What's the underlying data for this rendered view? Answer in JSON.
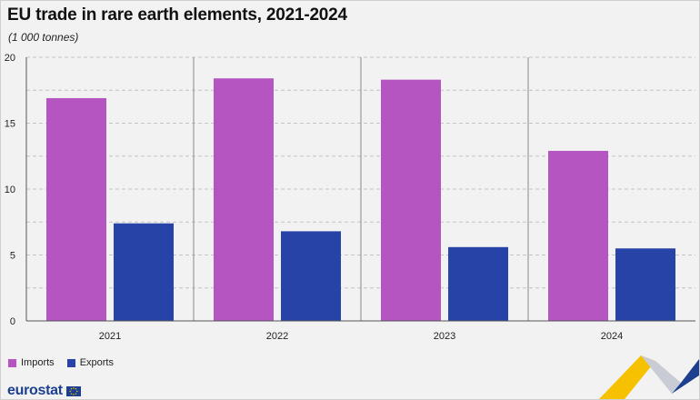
{
  "header": {
    "title": "EU trade in rare earth elements, 2021-2024",
    "unit": "(1 000 tonnes)"
  },
  "brand": {
    "logo_text": "eurostat",
    "logo_icon": "eu-flag-icon"
  },
  "colors": {
    "imports": "#b455c2",
    "exports": "#2843a8",
    "grid": "#c4c4c4",
    "separator": "#888888",
    "background": "#f2f2f2"
  },
  "chart_data": {
    "type": "bar",
    "title": "EU trade in rare earth elements, 2021-2024",
    "ylabel": "(1 000 tonnes)",
    "xlabel": "",
    "categories": [
      "2021",
      "2022",
      "2023",
      "2024"
    ],
    "series": [
      {
        "name": "Imports",
        "values": [
          16.9,
          18.4,
          18.3,
          12.9
        ]
      },
      {
        "name": "Exports",
        "values": [
          7.4,
          6.8,
          5.6,
          5.5
        ]
      }
    ],
    "ylim": [
      0,
      20
    ],
    "yticks": [
      0,
      5,
      10,
      15,
      20
    ],
    "grid": true,
    "legend_position": "bottom-left"
  }
}
